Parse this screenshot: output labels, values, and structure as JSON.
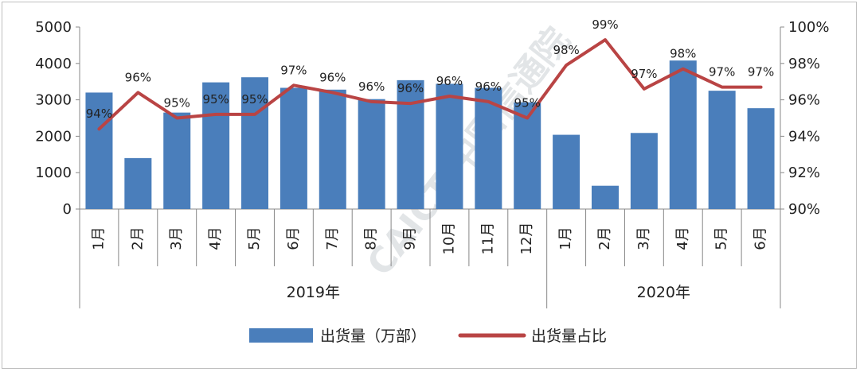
{
  "chart_data": {
    "type": "bar+line",
    "categories": [
      "1月",
      "2月",
      "3月",
      "4月",
      "5月",
      "6月",
      "7月",
      "8月",
      "9月",
      "10月",
      "11月",
      "12月",
      "1月",
      "2月",
      "3月",
      "4月",
      "5月",
      "6月"
    ],
    "groups": [
      {
        "label": "2019年",
        "start": 0,
        "end": 11
      },
      {
        "label": "2020年",
        "start": 12,
        "end": 17
      }
    ],
    "series": [
      {
        "name": "出货量（万部）",
        "type": "bar",
        "axis": "left",
        "color": "#4a7ebb",
        "values": [
          3200,
          1400,
          2650,
          3480,
          3620,
          3330,
          3280,
          3020,
          3540,
          3440,
          3330,
          2930,
          2040,
          640,
          2090,
          4080,
          3250,
          2770
        ]
      },
      {
        "name": "出货量占比",
        "type": "line",
        "axis": "right",
        "color": "#b94444",
        "values": [
          94.4,
          96.4,
          95.0,
          95.2,
          95.2,
          96.8,
          96.4,
          95.9,
          95.8,
          96.2,
          95.9,
          95.0,
          97.9,
          99.3,
          96.6,
          97.7,
          96.7,
          96.7
        ],
        "labels": [
          "94%",
          "96%",
          "95%",
          "95%",
          "95%",
          "97%",
          "96%",
          "96%",
          "96%",
          "96%",
          "96%",
          "95%",
          "98%",
          "99%",
          "97%",
          "98%",
          "97%",
          "97%"
        ]
      }
    ],
    "y_left": {
      "min": 0,
      "max": 5000,
      "step": 1000,
      "ticks": [
        "0",
        "1000",
        "2000",
        "3000",
        "4000",
        "5000"
      ]
    },
    "y_right": {
      "min": 90,
      "max": 100,
      "step": 2,
      "ticks": [
        "90%",
        "92%",
        "94%",
        "96%",
        "98%",
        "100%"
      ]
    },
    "legend": {
      "position": "bottom",
      "entries": [
        "出货量（万部）",
        "出货量占比"
      ]
    },
    "watermark": "CAICT 中国信通院"
  }
}
